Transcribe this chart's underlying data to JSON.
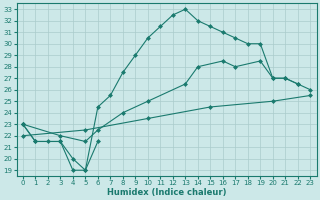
{
  "xlabel": "Humidex (Indice chaleur)",
  "xlim": [
    -0.5,
    23.5
  ],
  "ylim": [
    18.5,
    33.5
  ],
  "xticks": [
    0,
    1,
    2,
    3,
    4,
    5,
    6,
    7,
    8,
    9,
    10,
    11,
    12,
    13,
    14,
    15,
    16,
    17,
    18,
    19,
    20,
    21,
    22,
    23
  ],
  "yticks": [
    19,
    20,
    21,
    22,
    23,
    24,
    25,
    26,
    27,
    28,
    29,
    30,
    31,
    32,
    33
  ],
  "bg_color": "#cce8e8",
  "line_color": "#1a7a6e",
  "grid_color": "#aacccc",
  "curve1_x": [
    0,
    1,
    2,
    3,
    4,
    5,
    6,
    7,
    8,
    9,
    10,
    11,
    12,
    13,
    14,
    15,
    16,
    17,
    18,
    19,
    20,
    21,
    22
  ],
  "curve1_y": [
    23.0,
    21.5,
    21.5,
    21.5,
    20.0,
    19.0,
    24.5,
    25.5,
    27.5,
    29.0,
    30.5,
    31.5,
    32.5,
    33.0,
    32.0,
    31.5,
    31.0,
    30.5,
    30.0,
    30.0,
    27.0,
    27.0,
    26.5
  ],
  "curve2_x": [
    0,
    3,
    5,
    6,
    8,
    10,
    13,
    14,
    16,
    17,
    19,
    20,
    21,
    22,
    23
  ],
  "curve2_y": [
    23.0,
    22.0,
    21.5,
    22.5,
    24.0,
    25.0,
    26.5,
    28.0,
    28.5,
    28.0,
    28.5,
    27.0,
    27.0,
    26.5,
    26.0
  ],
  "curve3_x": [
    0,
    5,
    10,
    15,
    20,
    23
  ],
  "curve3_y": [
    22.0,
    22.5,
    23.5,
    24.5,
    25.0,
    25.5
  ],
  "curve4_x": [
    0,
    1,
    3,
    4,
    5,
    6
  ],
  "curve4_y": [
    23.0,
    21.5,
    21.5,
    19.0,
    19.0,
    21.5
  ]
}
